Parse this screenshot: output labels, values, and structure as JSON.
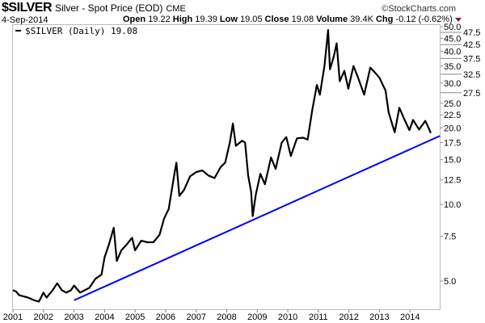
{
  "header": {
    "symbol": "$SILVER",
    "description": "Silver - Spot Price (EOD)",
    "exchange": "CME",
    "source": "©StockCharts.com",
    "date": "4-Sep-2014",
    "open_label": "Open",
    "open": "19.22",
    "high_label": "High",
    "high": "19.39",
    "low_label": "Low",
    "low": "19.05",
    "close_label": "Close",
    "close": "19.08",
    "volume_label": "Volume",
    "volume": "39.4K",
    "chg_label": "Chg",
    "chg": "-0.12 (-0.62%)"
  },
  "chart_data": {
    "type": "line",
    "title": "$SILVER Silver - Spot Price (EOD)",
    "legend": "$SILVER (Daily) 19.08",
    "legend_placement": "top-left",
    "yscale": "log",
    "ylim": [
      3.9,
      51
    ],
    "xlim": [
      2001.0,
      2015.0
    ],
    "xticks": [
      "2001",
      "2002",
      "2003",
      "2004",
      "2005",
      "2006",
      "2007",
      "2008",
      "2009",
      "2010",
      "2011",
      "2012",
      "2013",
      "2014"
    ],
    "yticks": [
      "50.0",
      "47.5",
      "45.0",
      "42.5",
      "40.0",
      "37.5",
      "35.0",
      "32.5",
      "30.0",
      "27.5",
      "25.0",
      "22.5",
      "20.0",
      "17.5",
      "15.0",
      "12.5",
      "10.0",
      "7.5",
      "5.0"
    ],
    "series": [
      {
        "name": "$SILVER",
        "color": "#000000",
        "points": [
          [
            2001.0,
            4.6
          ],
          [
            2001.1,
            4.55
          ],
          [
            2001.2,
            4.4
          ],
          [
            2001.35,
            4.35
          ],
          [
            2001.5,
            4.3
          ],
          [
            2001.7,
            4.2
          ],
          [
            2001.85,
            4.15
          ],
          [
            2002.0,
            4.5
          ],
          [
            2002.1,
            4.3
          ],
          [
            2002.3,
            4.6
          ],
          [
            2002.45,
            4.9
          ],
          [
            2002.6,
            4.6
          ],
          [
            2002.75,
            4.5
          ],
          [
            2002.9,
            4.6
          ],
          [
            2003.0,
            4.8
          ],
          [
            2003.2,
            4.5
          ],
          [
            2003.35,
            4.6
          ],
          [
            2003.5,
            4.7
          ],
          [
            2003.7,
            5.1
          ],
          [
            2003.9,
            5.3
          ],
          [
            2004.0,
            6.2
          ],
          [
            2004.15,
            7.0
          ],
          [
            2004.3,
            8.1
          ],
          [
            2004.4,
            6.0
          ],
          [
            2004.55,
            6.6
          ],
          [
            2004.7,
            6.9
          ],
          [
            2004.9,
            7.4
          ],
          [
            2005.0,
            6.6
          ],
          [
            2005.2,
            7.2
          ],
          [
            2005.4,
            7.1
          ],
          [
            2005.6,
            7.1
          ],
          [
            2005.8,
            7.6
          ],
          [
            2005.95,
            8.8
          ],
          [
            2006.1,
            9.6
          ],
          [
            2006.3,
            13.5
          ],
          [
            2006.35,
            14.6
          ],
          [
            2006.45,
            10.8
          ],
          [
            2006.6,
            11.4
          ],
          [
            2006.8,
            12.9
          ],
          [
            2007.0,
            13.4
          ],
          [
            2007.2,
            13.6
          ],
          [
            2007.4,
            13.0
          ],
          [
            2007.6,
            12.7
          ],
          [
            2007.8,
            14.0
          ],
          [
            2007.95,
            14.6
          ],
          [
            2008.1,
            17.5
          ],
          [
            2008.2,
            20.8
          ],
          [
            2008.3,
            17.0
          ],
          [
            2008.5,
            17.8
          ],
          [
            2008.6,
            17.5
          ],
          [
            2008.7,
            13.0
          ],
          [
            2008.8,
            11.2
          ],
          [
            2008.85,
            9.0
          ],
          [
            2008.95,
            10.9
          ],
          [
            2009.1,
            13.2
          ],
          [
            2009.25,
            12.0
          ],
          [
            2009.45,
            15.3
          ],
          [
            2009.6,
            13.8
          ],
          [
            2009.8,
            17.5
          ],
          [
            2009.95,
            18.4
          ],
          [
            2010.1,
            15.5
          ],
          [
            2010.3,
            18.2
          ],
          [
            2010.5,
            18.3
          ],
          [
            2010.65,
            18.0
          ],
          [
            2010.8,
            23.5
          ],
          [
            2010.95,
            29.5
          ],
          [
            2011.05,
            27.0
          ],
          [
            2011.2,
            35.0
          ],
          [
            2011.32,
            48.5
          ],
          [
            2011.38,
            34.0
          ],
          [
            2011.5,
            38.0
          ],
          [
            2011.6,
            43.0
          ],
          [
            2011.7,
            30.5
          ],
          [
            2011.85,
            33.5
          ],
          [
            2011.98,
            28.5
          ],
          [
            2012.15,
            35.0
          ],
          [
            2012.3,
            31.5
          ],
          [
            2012.5,
            27.0
          ],
          [
            2012.7,
            34.5
          ],
          [
            2012.85,
            33.0
          ],
          [
            2013.0,
            31.5
          ],
          [
            2013.2,
            28.0
          ],
          [
            2013.3,
            23.0
          ],
          [
            2013.5,
            19.2
          ],
          [
            2013.65,
            24.0
          ],
          [
            2013.8,
            21.8
          ],
          [
            2013.98,
            19.6
          ],
          [
            2014.1,
            21.5
          ],
          [
            2014.3,
            19.7
          ],
          [
            2014.5,
            21.3
          ],
          [
            2014.6,
            20.1
          ],
          [
            2014.68,
            19.08
          ]
        ]
      },
      {
        "name": "Trendline",
        "color": "#0000ff",
        "points": [
          [
            2003.0,
            4.2
          ],
          [
            2014.98,
            18.6
          ]
        ]
      }
    ]
  }
}
